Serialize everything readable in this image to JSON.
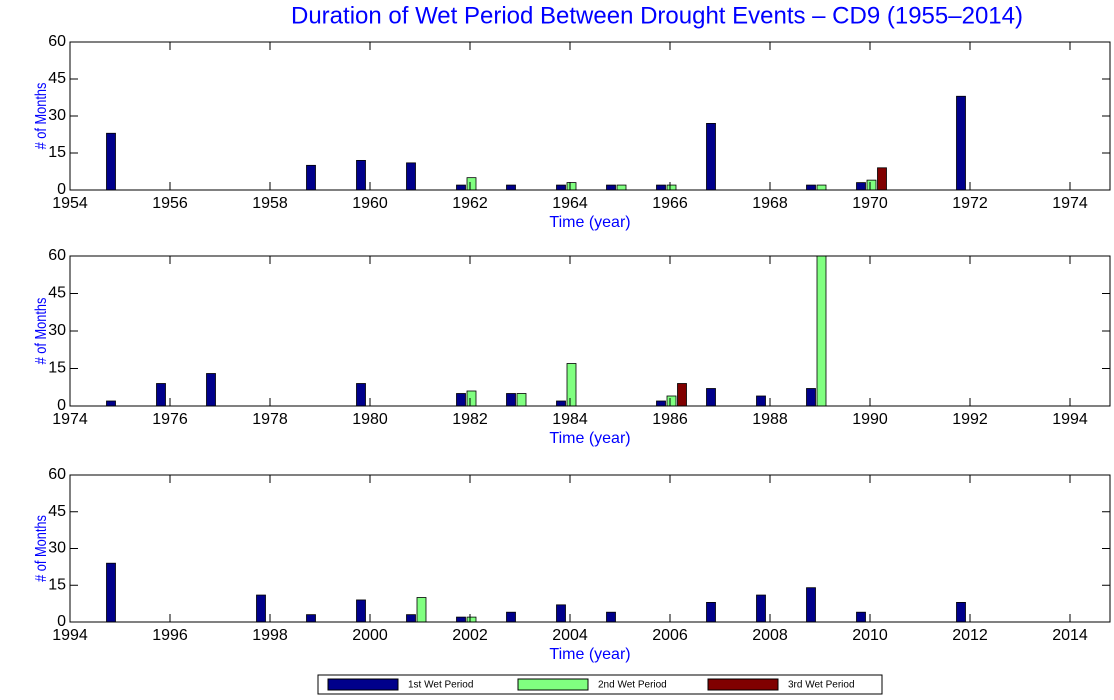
{
  "chart_data": [
    {
      "type": "bar",
      "title": "Duration of Wet Period Between Drought Events – CD9 (1955–2014)",
      "xlabel": "Time (year)",
      "ylabel": "# of Months",
      "x": [
        1955,
        1959,
        1960,
        1961,
        1962,
        1963,
        1964,
        1965,
        1966,
        1967,
        1969,
        1970,
        1972
      ],
      "series": [
        {
          "name": "1st Wet Period",
          "color": "#00008b",
          "values": [
            23,
            10,
            12,
            11,
            2,
            2,
            2,
            2,
            2,
            27,
            2,
            3,
            38
          ]
        },
        {
          "name": "2nd Wet Period",
          "color": "#80ff80",
          "values": [
            null,
            null,
            null,
            null,
            5,
            null,
            3,
            2,
            2,
            null,
            2,
            4,
            null
          ]
        },
        {
          "name": "3rd Wet Period",
          "color": "#800000",
          "values": [
            null,
            null,
            null,
            null,
            null,
            null,
            null,
            null,
            null,
            null,
            null,
            9,
            null
          ]
        }
      ],
      "xlim": [
        1954,
        1974.8
      ],
      "xticks": [
        1954,
        1956,
        1958,
        1960,
        1962,
        1964,
        1966,
        1968,
        1970,
        1972,
        1974
      ],
      "ylim": [
        0,
        60
      ],
      "yticks": [
        0,
        15,
        30,
        45,
        60
      ]
    },
    {
      "type": "bar",
      "xlabel": "Time (year)",
      "ylabel": "# of Months",
      "x": [
        1975,
        1976,
        1977,
        1980,
        1982,
        1983,
        1984,
        1986,
        1987,
        1988,
        1989
      ],
      "series": [
        {
          "name": "1st Wet Period",
          "color": "#00008b",
          "values": [
            2,
            9,
            13,
            9,
            5,
            5,
            2,
            2,
            7,
            4,
            7
          ]
        },
        {
          "name": "2nd Wet Period",
          "color": "#80ff80",
          "values": [
            null,
            null,
            null,
            null,
            6,
            5,
            17,
            4,
            null,
            null,
            60
          ]
        },
        {
          "name": "3rd Wet Period",
          "color": "#800000",
          "values": [
            null,
            null,
            null,
            null,
            null,
            null,
            null,
            9,
            null,
            null,
            null
          ]
        }
      ],
      "xlim": [
        1974,
        1994.8
      ],
      "xticks": [
        1974,
        1976,
        1978,
        1980,
        1982,
        1984,
        1986,
        1988,
        1990,
        1992,
        1994
      ],
      "ylim": [
        0,
        60
      ],
      "yticks": [
        0,
        15,
        30,
        45,
        60
      ]
    },
    {
      "type": "bar",
      "xlabel": "Time (year)",
      "ylabel": "# of Months",
      "x": [
        1995,
        1998,
        1999,
        2000,
        2001,
        2002,
        2003,
        2004,
        2005,
        2007,
        2008,
        2009,
        2010,
        2012
      ],
      "series": [
        {
          "name": "1st Wet Period",
          "color": "#00008b",
          "values": [
            24,
            11,
            3,
            9,
            3,
            2,
            4,
            7,
            4,
            8,
            11,
            14,
            4,
            8
          ]
        },
        {
          "name": "2nd Wet Period",
          "color": "#80ff80",
          "values": [
            null,
            null,
            null,
            null,
            10,
            2,
            null,
            null,
            null,
            null,
            null,
            null,
            null,
            null
          ]
        },
        {
          "name": "3rd Wet Period",
          "color": "#800000",
          "values": [
            null,
            null,
            null,
            null,
            null,
            null,
            null,
            null,
            null,
            null,
            null,
            null,
            null,
            null
          ]
        }
      ],
      "xlim": [
        1994,
        2014.8
      ],
      "xticks": [
        1994,
        1996,
        1998,
        2000,
        2002,
        2004,
        2006,
        2008,
        2010,
        2012,
        2014
      ],
      "ylim": [
        0,
        60
      ],
      "yticks": [
        0,
        15,
        30,
        45,
        60
      ]
    }
  ]
}
